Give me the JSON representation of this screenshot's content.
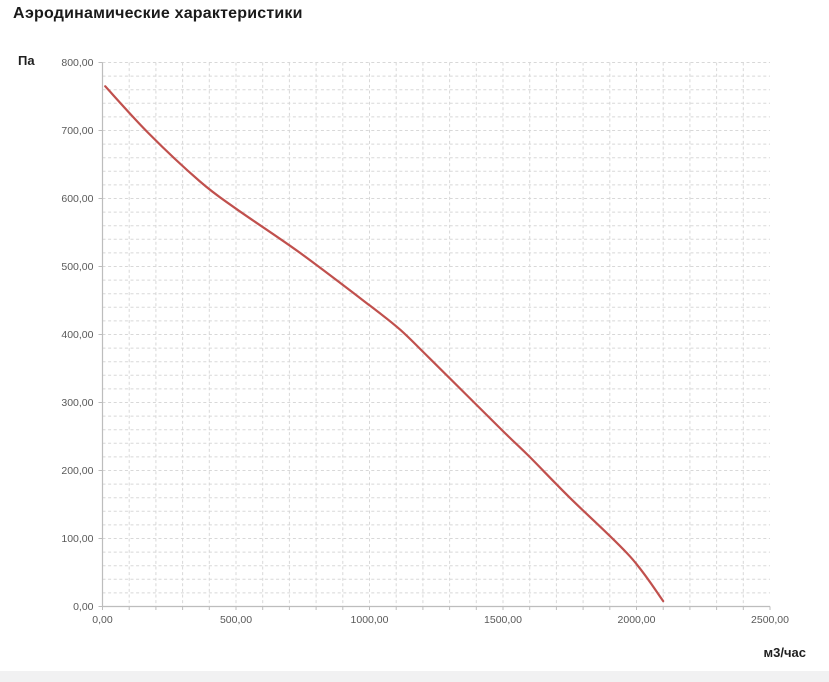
{
  "chart_data": {
    "type": "line",
    "title": "Аэродинамические характеристики",
    "y_axis_unit": "Па",
    "x_axis_unit": "м3/час",
    "xlim": [
      0,
      2500
    ],
    "ylim": [
      0,
      800
    ],
    "x_tick_step": 500,
    "y_tick_step": 100,
    "x_minor_step": 100,
    "y_minor_step": 20,
    "x_tick_labels": [
      "0,00",
      "500,00",
      "1000,00",
      "1500,00",
      "2000,00",
      "2500,00"
    ],
    "y_tick_labels": [
      "0,00",
      "100,00",
      "200,00",
      "300,00",
      "400,00",
      "500,00",
      "600,00",
      "700,00",
      "800,00"
    ],
    "grid": "dashed-minor-and-major",
    "legend": "none",
    "colors": {
      "line": "#C0504D",
      "grid": "#d8d8d8",
      "axis": "#bdbdbd",
      "tick_text": "#595959"
    },
    "series": [
      {
        "name": "pressure-vs-flow",
        "color": "#C0504D",
        "points": [
          {
            "x": 10,
            "y": 765
          },
          {
            "x": 175,
            "y": 695
          },
          {
            "x": 365,
            "y": 625
          },
          {
            "x": 500,
            "y": 585
          },
          {
            "x": 740,
            "y": 520
          },
          {
            "x": 1000,
            "y": 443
          },
          {
            "x": 1115,
            "y": 407
          },
          {
            "x": 1225,
            "y": 365
          },
          {
            "x": 1500,
            "y": 258
          },
          {
            "x": 1600,
            "y": 220
          },
          {
            "x": 1750,
            "y": 160
          },
          {
            "x": 1975,
            "y": 74
          },
          {
            "x": 2100,
            "y": 8
          }
        ]
      }
    ]
  }
}
